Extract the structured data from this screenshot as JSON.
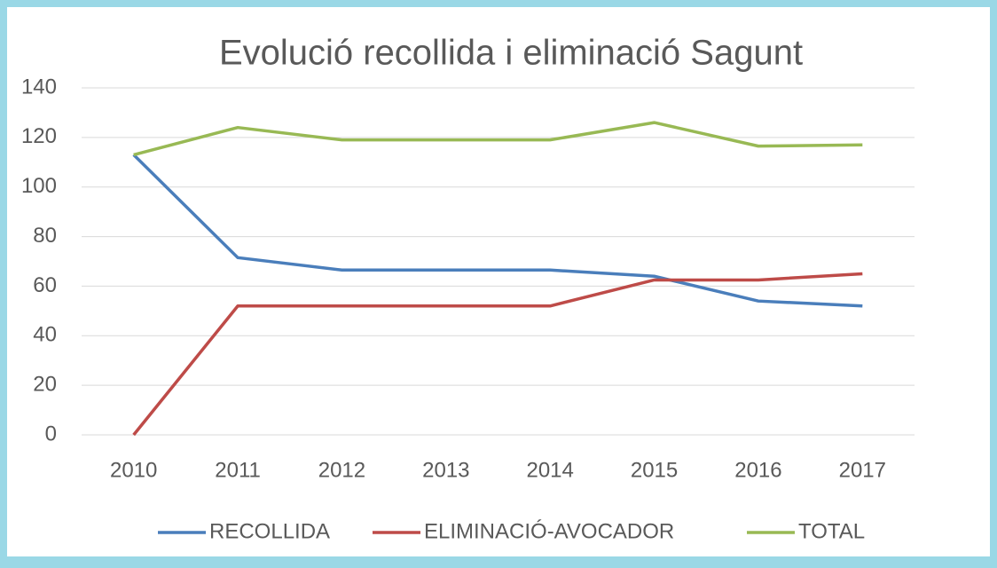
{
  "chart_data": {
    "type": "line",
    "title": "Evolució recollida i eliminació Sagunt",
    "categories": [
      "2010",
      "2011",
      "2012",
      "2013",
      "2014",
      "2015",
      "2016",
      "2017"
    ],
    "series": [
      {
        "name": "RECOLLIDA",
        "color": "#4a7ebb",
        "values": [
          113,
          71.5,
          66.5,
          66.5,
          66.5,
          64,
          54,
          52
        ]
      },
      {
        "name": "ELIMINACIÓ-AVOCADOR",
        "color": "#be4b48",
        "values": [
          0,
          52,
          52,
          52,
          52,
          62.5,
          62.5,
          65
        ]
      },
      {
        "name": "TOTAL",
        "color": "#98b954",
        "values": [
          113,
          124,
          119,
          119,
          119,
          126,
          116.5,
          117
        ]
      }
    ],
    "ylim": [
      0,
      140
    ],
    "yticks": [
      0,
      20,
      40,
      60,
      80,
      100,
      120,
      140
    ],
    "grid": true,
    "legend": "bottom"
  }
}
